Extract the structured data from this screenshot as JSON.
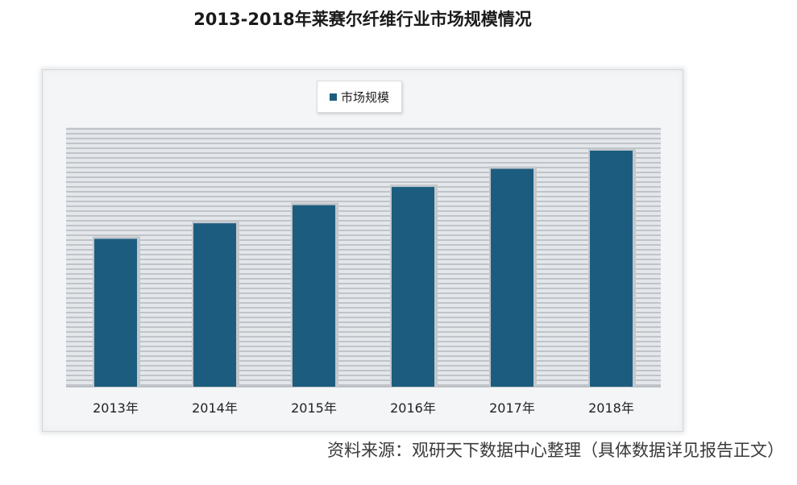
{
  "title": "2013-2018年莱赛尔纤维行业市场规模情况",
  "source_note": "资料来源：观研天下数据中心整理（具体数据详见报告正文）",
  "chart_data": {
    "type": "bar",
    "categories": [
      "2013年",
      "2014年",
      "2015年",
      "2016年",
      "2017年",
      "2018年"
    ],
    "series": [
      {
        "name": "市场规模",
        "values": [
          57,
          63,
          70,
          77,
          84,
          91
        ],
        "color": "#1c5d7f"
      }
    ],
    "ylim": [
      0,
      100
    ],
    "legend": "top-center",
    "grid": true,
    "axis_tick_labels_shown": false
  }
}
